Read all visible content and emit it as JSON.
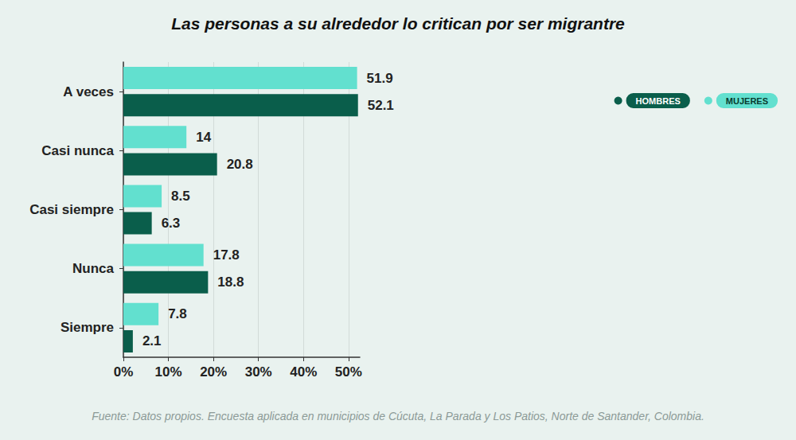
{
  "chart_data": {
    "type": "bar",
    "title": "Las personas a su alrededor lo critican por ser migrantre",
    "source": "Fuente: Datos propios. Encuesta aplicada en municipios de Cúcuta, La Parada y Los Patios, Norte de Santander, Colombia.",
    "orientation": "horizontal",
    "categories": [
      "A veces",
      "Casi nunca",
      "Casi siempre",
      "Nunca",
      "Siempre"
    ],
    "series": [
      {
        "name": "MUJERES",
        "color": "#62e0cf",
        "values": [
          51.9,
          14,
          8.5,
          17.8,
          7.8
        ]
      },
      {
        "name": "HOMBRES",
        "color": "#0a5e4b",
        "values": [
          52.1,
          20.8,
          6.3,
          18.8,
          2.1
        ]
      }
    ],
    "xlim": [
      0,
      52.5
    ],
    "xticks": [
      {
        "value": 0,
        "label": "0%"
      },
      {
        "value": 10,
        "label": "10%"
      },
      {
        "value": 20,
        "label": "20%"
      },
      {
        "value": 30,
        "label": "30%"
      },
      {
        "value": 40,
        "label": "40%"
      },
      {
        "value": 50,
        "label": "50%"
      }
    ],
    "grid": true,
    "legend": "top-right",
    "data_labels": true
  }
}
